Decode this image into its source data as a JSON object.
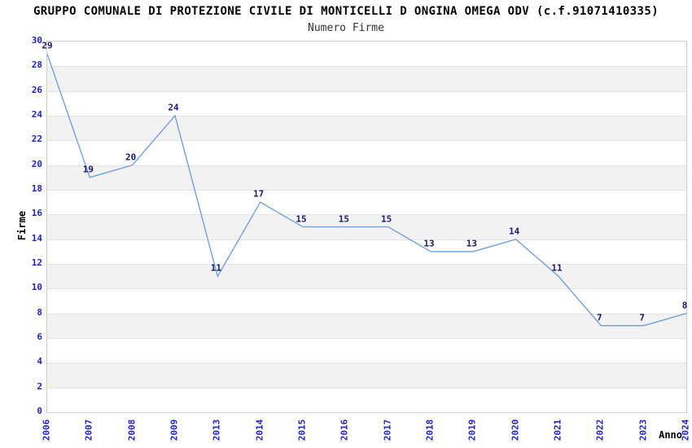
{
  "chart_data": {
    "type": "line",
    "title": "GRUPPO COMUNALE DI PROTEZIONE CIVILE DI MONTICELLI D ONGINA OMEGA ODV (c.f.91071410335)",
    "subtitle": "Numero Firme",
    "xlabel": "Anno",
    "ylabel": "Firme",
    "categories": [
      "2006",
      "2007",
      "2008",
      "2009",
      "2013",
      "2014",
      "2015",
      "2016",
      "2017",
      "2018",
      "2019",
      "2020",
      "2021",
      "2022",
      "2023",
      "2024"
    ],
    "series": [
      {
        "name": "Numero Firme",
        "values": [
          29,
          19,
          20,
          24,
          11,
          17,
          15,
          15,
          15,
          13,
          13,
          14,
          11,
          7,
          7,
          8
        ]
      }
    ],
    "ylim": [
      0,
      30
    ],
    "ytick_step": 2,
    "grid": "horizontal gridlines with alternating gray/white bands every 2 units",
    "legend": "none",
    "colors": {
      "line": "#6a9bdf",
      "tick_label": "#2222cc",
      "value_label": "#191970",
      "band_gray": "#f2f2f2",
      "band_white": "#ffffff",
      "gridline": "#e5e5e5",
      "plot_border": "#d0d0d0",
      "title_text": "#000000",
      "subtitle_text": "#333333"
    }
  }
}
